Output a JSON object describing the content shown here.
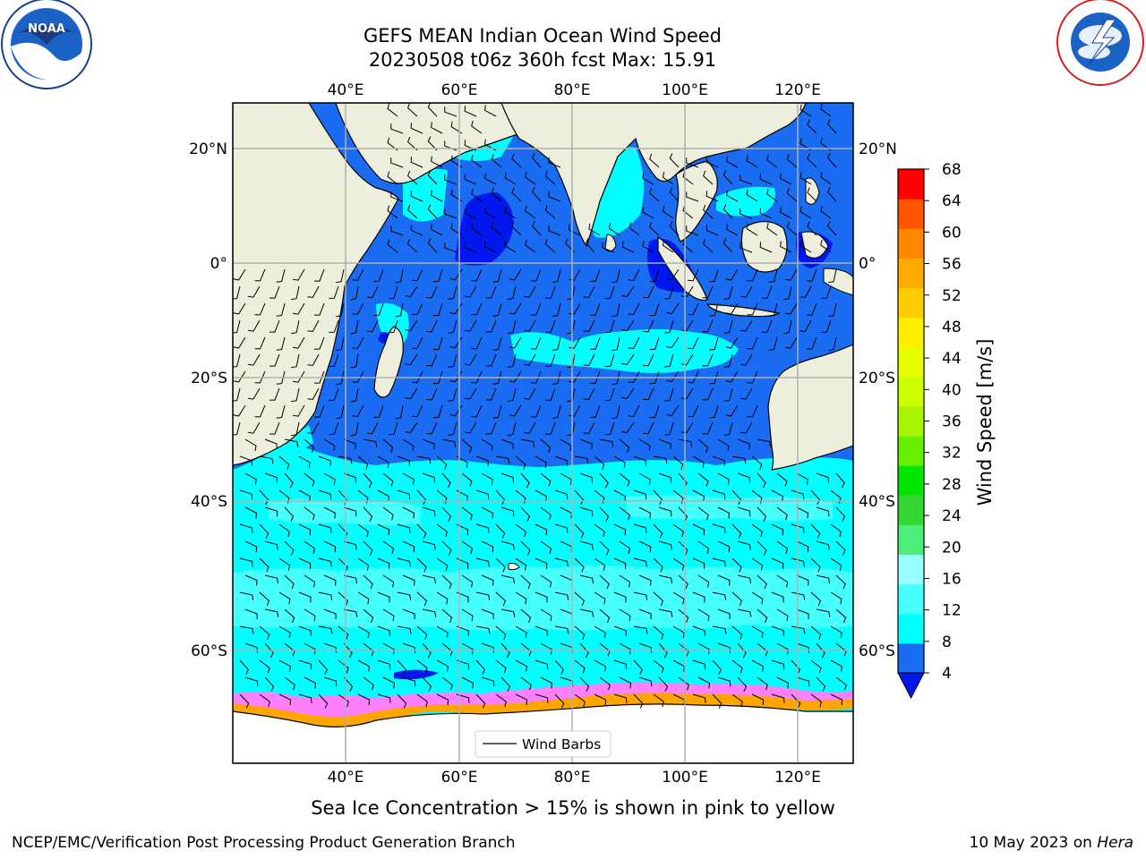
{
  "title": {
    "line1": "GEFS MEAN Indian Ocean Wind Speed",
    "line2": "20230508 t06z 360h fcst   Max: 15.91"
  },
  "map": {
    "lon_labels": [
      "40°E",
      "60°E",
      "80°E",
      "100°E",
      "120°E"
    ],
    "lat_labels": [
      "20°N",
      "0°",
      "20°S",
      "40°S",
      "60°S"
    ],
    "legend_label": "Wind Barbs",
    "colors": {
      "land": "#eeeedd",
      "ocean_4_8": "#1a6cf2",
      "ocean_lt4": "#0018ee",
      "ocean_8_12": "#00ffff",
      "ocean_12_16": "#46ffff",
      "ocean_16_20": "#99ffff",
      "ice": "#ff80ff",
      "ice_edge": "#ffa500"
    }
  },
  "colorbar": {
    "label": "Wind Speed [m/s]",
    "ticks": [
      "4",
      "8",
      "12",
      "16",
      "20",
      "24",
      "28",
      "32",
      "36",
      "40",
      "44",
      "48",
      "52",
      "56",
      "60",
      "64",
      "68"
    ],
    "colors": [
      "#1a6cf2",
      "#00ffff",
      "#46ffff",
      "#99ffff",
      "#4ded7a",
      "#33d633",
      "#00e600",
      "#66ee00",
      "#a9f400",
      "#ccff00",
      "#e5ff00",
      "#ffee00",
      "#ffcc00",
      "#ffaa00",
      "#ff8800",
      "#ff5500",
      "#ff0000"
    ],
    "under_color": "#0018ee"
  },
  "caption": "Sea Ice Concentration > 15% is shown in pink to yellow",
  "footer": {
    "left": "NCEP/EMC/Verification Post Processing Product Generation Branch",
    "date": "10 May 2023 on ",
    "machine": "Hera"
  }
}
